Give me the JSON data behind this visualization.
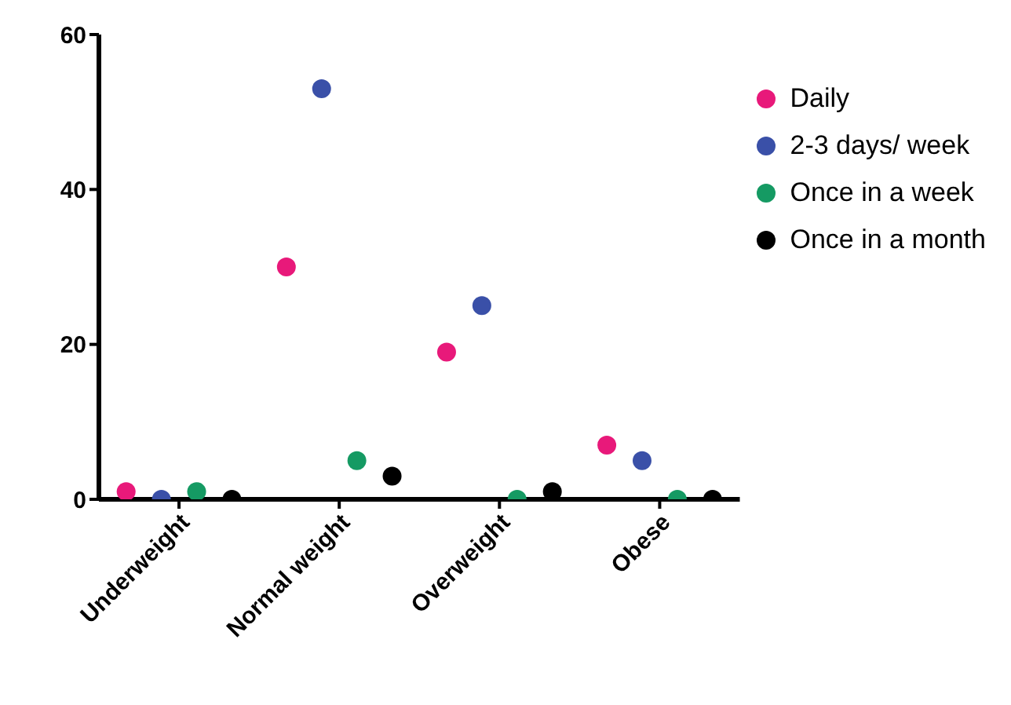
{
  "chart_data": {
    "type": "scatter",
    "categories": [
      "Underweight",
      "Normal weight",
      "Overweight",
      "Obese"
    ],
    "series": [
      {
        "name": "Daily",
        "color": "#e8197a",
        "values": [
          1,
          30,
          19,
          7
        ]
      },
      {
        "name": "2-3 days/ week",
        "color": "#3a50a8",
        "values": [
          0,
          53,
          25,
          5
        ]
      },
      {
        "name": "Once in a week",
        "color": "#159a63",
        "values": [
          1,
          5,
          0,
          0
        ]
      },
      {
        "name": "Once in a month",
        "color": "#000000",
        "values": [
          0,
          3,
          1,
          0
        ]
      }
    ],
    "ylim": [
      0,
      60
    ],
    "yticks": [
      0,
      20,
      40,
      60
    ],
    "grid": false,
    "legend": "top right",
    "marker": "circle"
  }
}
